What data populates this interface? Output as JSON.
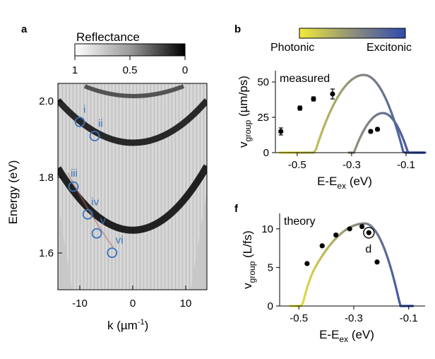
{
  "colors": {
    "marker_blue": "#3b74b8",
    "photonic_yellow": "#f2ec3a",
    "excitonic_blue": "#2f4bb0",
    "bg_gray": "#c8c8c8"
  },
  "panel_a": {
    "letter": "a",
    "colorbar": {
      "title": "Reflectance",
      "ticks": [
        "1",
        "0.5",
        "0"
      ]
    },
    "x_axis": {
      "label": "k (µm",
      "label_sup": "-1",
      "label_close": ")",
      "ticks": [
        "-10",
        "0",
        "10"
      ]
    },
    "y_axis": {
      "label": "Energy (eV)",
      "ticks": [
        "2.0",
        "1.8",
        "1.6"
      ]
    },
    "markers": [
      {
        "label": "i",
        "k": -10.0,
        "e": 1.945
      },
      {
        "label": "ii",
        "k": -7.2,
        "e": 1.908
      },
      {
        "label": "iii",
        "k": -11.2,
        "e": 1.775
      },
      {
        "label": "iv",
        "k": -8.5,
        "e": 1.702
      },
      {
        "label": "v",
        "k": -6.8,
        "e": 1.652
      },
      {
        "label": "vi",
        "k": -3.9,
        "e": 1.601
      }
    ]
  },
  "chart_data": [
    {
      "type": "scatter",
      "panel": "b",
      "legend_left": "Photonic",
      "legend_right": "Excitonic",
      "inset_label": "measured",
      "xlabel": "E-E",
      "xlabel_sub": "ex",
      "xlabel_unit": " (eV)",
      "ylabel": "v",
      "ylabel_sub": "group",
      "ylabel_unit": " (µm/ps)",
      "xlim": [
        -0.58,
        -0.03
      ],
      "ylim": [
        0,
        58
      ],
      "x_ticks": [
        -0.5,
        -0.3,
        -0.1
      ],
      "x_tick_labels": [
        "-0.5",
        "-0.3",
        "-0.1"
      ],
      "y_ticks": [
        0,
        25,
        50
      ],
      "y_tick_labels": [
        "0",
        "25",
        "50"
      ],
      "points": [
        {
          "x": -0.56,
          "y": 15,
          "err": 2.5
        },
        {
          "x": -0.49,
          "y": 31.5,
          "err": 1.5
        },
        {
          "x": -0.44,
          "y": 38,
          "err": 1.5
        },
        {
          "x": -0.37,
          "y": 41.5,
          "err": 3.5
        },
        {
          "x": -0.23,
          "y": 15,
          "err": 1
        },
        {
          "x": -0.205,
          "y": 16.5,
          "err": 1
        }
      ]
    },
    {
      "type": "scatter",
      "panel": "f",
      "inset_label": "theory",
      "annotation": "d",
      "xlabel": "E-E",
      "xlabel_sub": "ex",
      "xlabel_unit": " (eV)",
      "ylabel": "v",
      "ylabel_sub": "group",
      "ylabel_unit": " (L/fs)",
      "xlim": [
        -0.57,
        -0.04
      ],
      "ylim": [
        0,
        12
      ],
      "x_ticks": [
        -0.5,
        -0.3,
        -0.1
      ],
      "x_tick_labels": [
        "-0.5",
        "-0.3",
        "-0.1"
      ],
      "y_ticks": [
        0,
        5,
        10
      ],
      "y_tick_labels": [
        "0",
        "5",
        "10"
      ],
      "points": [
        {
          "x": -0.47,
          "y": 5.5
        },
        {
          "x": -0.415,
          "y": 7.8
        },
        {
          "x": -0.365,
          "y": 9.2
        },
        {
          "x": -0.315,
          "y": 10.0
        },
        {
          "x": -0.27,
          "y": 10.3
        },
        {
          "x": -0.245,
          "y": 9.5,
          "circled": true
        },
        {
          "x": -0.215,
          "y": 5.7
        }
      ]
    }
  ]
}
